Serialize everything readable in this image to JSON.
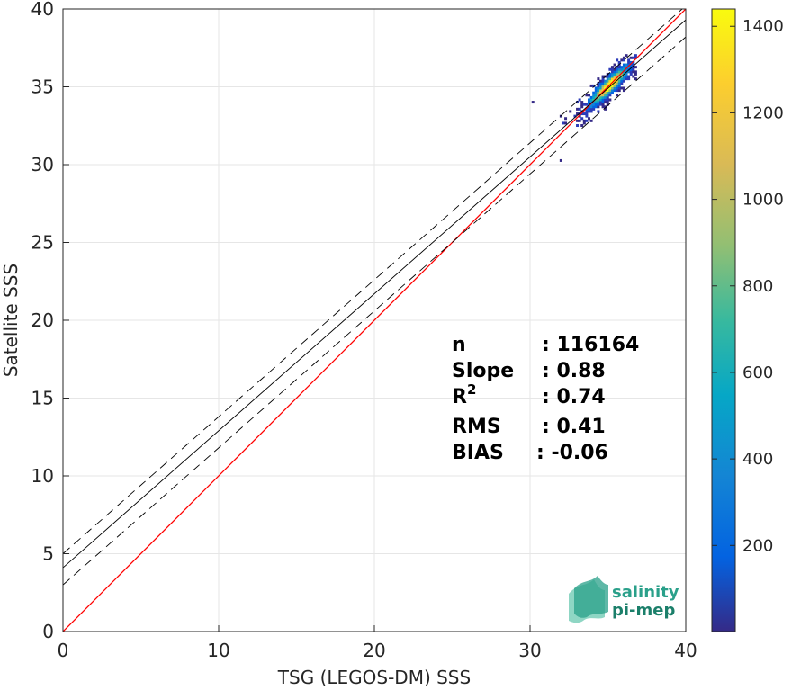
{
  "chart_data": {
    "type": "scatter",
    "subtype": "2d-density-histogram",
    "title": "",
    "xlabel": "TSG (LEGOS-DM) SSS",
    "ylabel": "Satellite SSS",
    "xlim": [
      0,
      40
    ],
    "ylim": [
      0,
      40
    ],
    "xticks": [
      0,
      10,
      20,
      30,
      40
    ],
    "yticks": [
      0,
      5,
      10,
      15,
      20,
      25,
      30,
      35,
      40
    ],
    "grid": true,
    "colormap": "parula",
    "colorbar": {
      "ticks": [
        200,
        400,
        600,
        800,
        1000,
        1200,
        1400
      ],
      "range": [
        1,
        1440
      ]
    },
    "lines": [
      {
        "name": "identity",
        "color": "#ff0000",
        "style": "solid",
        "slope": 1.0,
        "intercept": 0.0
      },
      {
        "name": "regression fit",
        "color": "#000000",
        "style": "solid",
        "slope": 0.88,
        "intercept": 4.1
      },
      {
        "name": "fit upper bound",
        "color": "#000000",
        "style": "dashed",
        "slope": 0.88,
        "intercept": 5.0
      },
      {
        "name": "fit lower bound",
        "color": "#000000",
        "style": "dashed",
        "slope": 0.88,
        "intercept": 3.0
      }
    ],
    "density_center": {
      "x": 35.0,
      "y": 35.0,
      "peak_count": 1440
    },
    "data_range": {
      "x": [
        29.5,
        36.8
      ],
      "y": [
        29.3,
        37.0
      ]
    },
    "stats": [
      {
        "label": "n",
        "value": ": 116164"
      },
      {
        "label": "Slope",
        "value": ": 0.88"
      },
      {
        "label": "R",
        "sup": "2",
        "value": ": 0.74"
      },
      {
        "label": "RMS",
        "value": ": 0.41"
      },
      {
        "label": "BIAS",
        "value": ": -0.06"
      }
    ]
  },
  "logo": {
    "line1": "salinity",
    "line2": "pi-mep",
    "color": "#2aa08a",
    "color2": "#1b7f6a"
  }
}
